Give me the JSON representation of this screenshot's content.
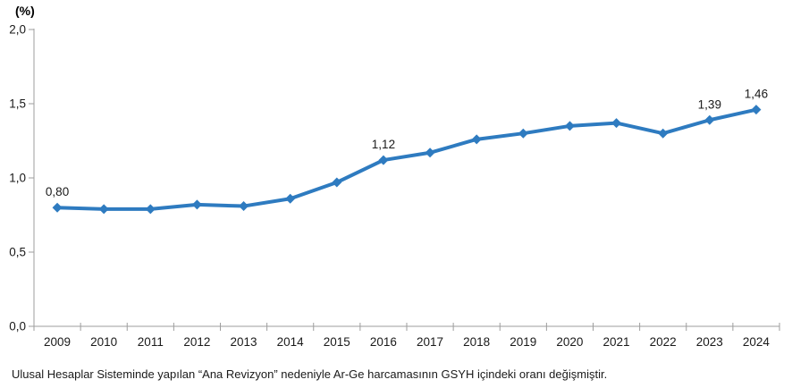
{
  "chart_data": {
    "type": "line",
    "title": "",
    "axis_title": "(%)",
    "xlabel": "",
    "ylabel": "(%)",
    "categories": [
      "2009",
      "2010",
      "2011",
      "2012",
      "2013",
      "2014",
      "2015",
      "2016",
      "2017",
      "2018",
      "2019",
      "2020",
      "2021",
      "2022",
      "2023",
      "2024"
    ],
    "values": [
      0.8,
      0.79,
      0.79,
      0.82,
      0.81,
      0.86,
      0.97,
      1.12,
      1.17,
      1.26,
      1.3,
      1.35,
      1.37,
      1.3,
      1.39,
      1.46
    ],
    "point_labels": {
      "2009": "0,80",
      "2016": "1,12",
      "2023": "1,39",
      "2024": "1,46"
    },
    "ylim": [
      0,
      2
    ],
    "yticks": [
      {
        "value": 0.0,
        "label": "0,0"
      },
      {
        "value": 0.5,
        "label": "0,5"
      },
      {
        "value": 1.0,
        "label": "1,0"
      },
      {
        "value": 1.5,
        "label": "1,5"
      },
      {
        "value": 2.0,
        "label": "2,0"
      }
    ],
    "grid": false,
    "legend": "none",
    "marker": "diamond",
    "colors": {
      "line": "#2E7BC0",
      "axis": "#9E9E9E",
      "text": "#1A1A1A"
    }
  },
  "footnote": "Ulusal Hesaplar Sisteminde yapılan “Ana Revizyon” nedeniyle Ar-Ge harcamasının GSYH içindeki oranı değişmiştir."
}
